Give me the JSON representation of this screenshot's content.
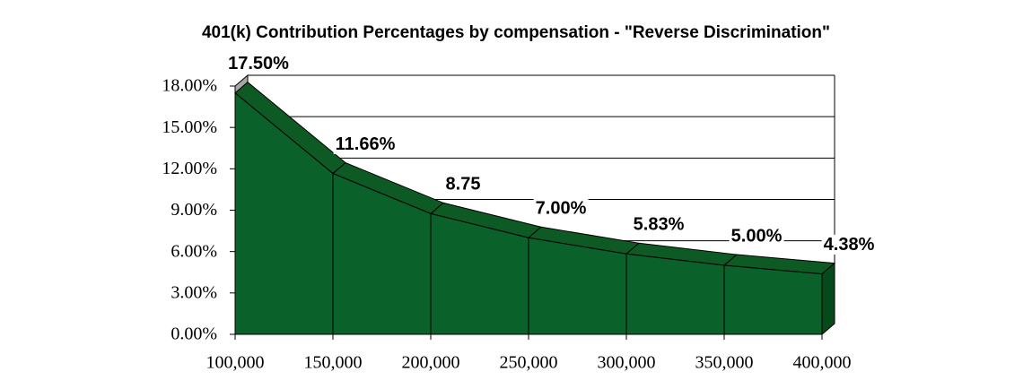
{
  "chart_data": {
    "type": "area3d",
    "title": "401(k) Contribution Percentages by compensation - \"Reverse Discrimination\"",
    "x": [
      100000,
      150000,
      200000,
      250000,
      300000,
      350000,
      400000
    ],
    "values": [
      17.5,
      11.66,
      8.75,
      7.0,
      5.83,
      5.0,
      4.38
    ],
    "value_labels": [
      "17.50%",
      "11.66%",
      "8.75",
      "7.00%",
      "5.83%",
      "5.00%",
      "4.38%"
    ],
    "color": "#0a6129",
    "xlim": [
      100000,
      400000
    ],
    "xticks": [
      {
        "value": 100000,
        "label": "100,000"
      },
      {
        "value": 150000,
        "label": "150,000"
      },
      {
        "value": 200000,
        "label": "200,000"
      },
      {
        "value": 250000,
        "label": "250,000"
      },
      {
        "value": 300000,
        "label": "300,000"
      },
      {
        "value": 350000,
        "label": "350,000"
      },
      {
        "value": 400000,
        "label": "400,000"
      }
    ],
    "ylim": [
      0,
      18
    ],
    "yticks": [
      {
        "value": 0,
        "label": "0.00%"
      },
      {
        "value": 3,
        "label": "3.00%"
      },
      {
        "value": 6,
        "label": "6.00%"
      },
      {
        "value": 9,
        "label": "9.00%"
      },
      {
        "value": 12,
        "label": "12.00%"
      },
      {
        "value": 15,
        "label": "15.00%"
      },
      {
        "value": 18,
        "label": "18.00%"
      }
    ],
    "grid": true
  }
}
